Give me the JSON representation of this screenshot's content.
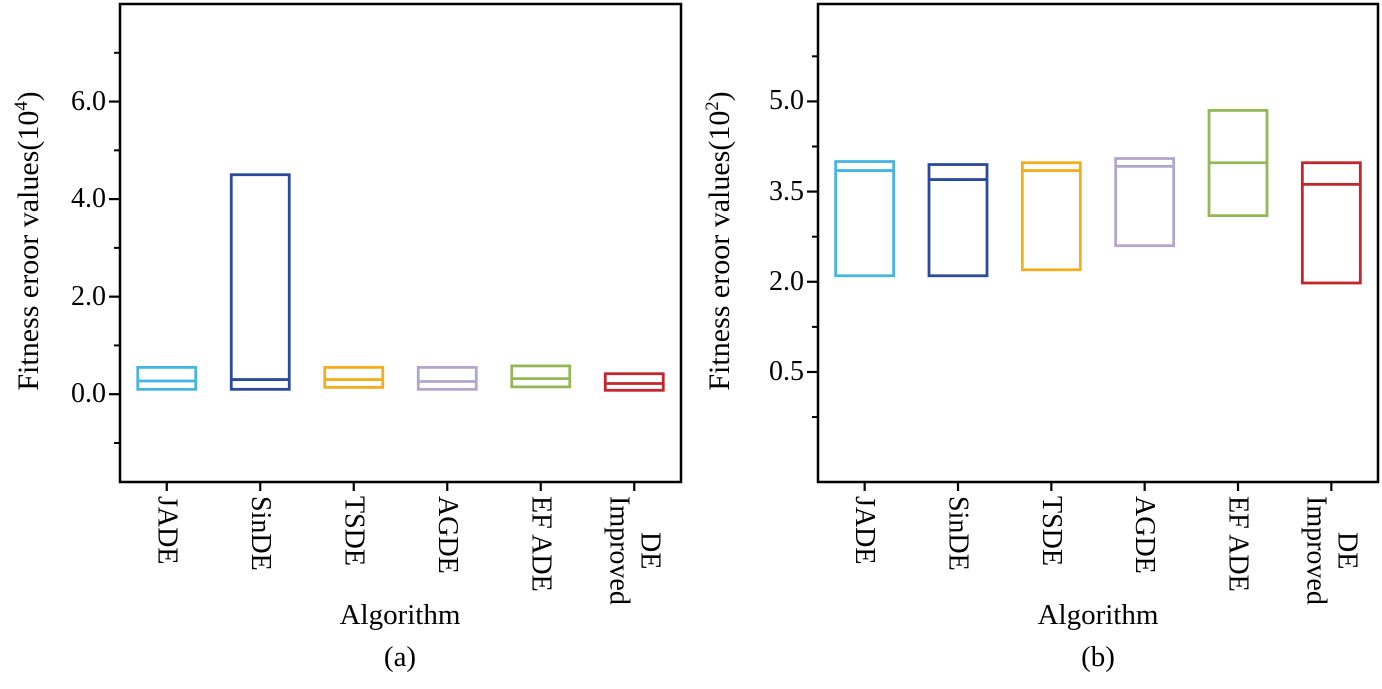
{
  "figure": {
    "background": "#ffffff",
    "frame_color": "#000000",
    "text_color": "#000000"
  },
  "chart_data": [
    {
      "type": "box",
      "caption": "(a)",
      "xlabel": "Algorithm",
      "ylabel": "Fitness eroor values(10^4)",
      "ylabel_prefix": "Fitness eroor values(10",
      "ylabel_exponent": "4",
      "ylabel_suffix": ")",
      "grid": false,
      "legend": false,
      "categories": [
        "JADE",
        "SinDE",
        "TSDE",
        "AGDE",
        "EF ADE",
        "Improved DE"
      ],
      "category_label_lines": [
        [
          "JADE"
        ],
        [
          "SinDE"
        ],
        [
          "TSDE"
        ],
        [
          "AGDE"
        ],
        [
          "EF ADE"
        ],
        [
          "Improved",
          "DE"
        ]
      ],
      "colors": [
        "#45B5E2",
        "#2C4A9D",
        "#F4AE1B",
        "#B3A6CC",
        "#94B857",
        "#C1272D"
      ],
      "ylim": [
        -1.8,
        8.0
      ],
      "yticks": [
        0.0,
        2.0,
        4.0,
        6.0
      ],
      "ytick_labels": [
        "0.0",
        "2.0",
        "4.0",
        "6.0"
      ],
      "minor_yticks": [
        -1.0,
        1.0,
        3.0,
        5.0,
        7.0
      ],
      "boxes": [
        {
          "category": "JADE",
          "low": 0.1,
          "median": 0.27,
          "high": 0.55
        },
        {
          "category": "SinDE",
          "low": 0.1,
          "median": 0.3,
          "high": 4.5
        },
        {
          "category": "TSDE",
          "low": 0.14,
          "median": 0.3,
          "high": 0.55
        },
        {
          "category": "AGDE",
          "low": 0.1,
          "median": 0.26,
          "high": 0.55
        },
        {
          "category": "EF ADE",
          "low": 0.15,
          "median": 0.32,
          "high": 0.58
        },
        {
          "category": "Improved DE",
          "low": 0.08,
          "median": 0.22,
          "high": 0.42
        }
      ]
    },
    {
      "type": "box",
      "caption": "(b)",
      "xlabel": "Algorithm",
      "ylabel": "Fitness eroor values(10^2)",
      "ylabel_prefix": "Fitness eroor values(10",
      "ylabel_exponent": "2",
      "ylabel_suffix": ")",
      "grid": false,
      "legend": false,
      "categories": [
        "JADE",
        "SinDE",
        "TSDE",
        "AGDE",
        "EF ADE",
        "Improved DE"
      ],
      "category_label_lines": [
        [
          "JADE"
        ],
        [
          "SinDE"
        ],
        [
          "TSDE"
        ],
        [
          "AGDE"
        ],
        [
          "EF ADE"
        ],
        [
          "Improved",
          "DE"
        ]
      ],
      "colors": [
        "#45B5E2",
        "#2C4A9D",
        "#F4AE1B",
        "#B3A6CC",
        "#94B857",
        "#C1272D"
      ],
      "ylim": [
        -1.33,
        6.62
      ],
      "yticks": [
        0.5,
        2.0,
        3.5,
        5.0
      ],
      "ytick_labels": [
        "0.5",
        "2.0",
        "3.5",
        "5.0"
      ],
      "minor_yticks": [
        -0.25,
        1.25,
        2.75,
        4.25,
        5.75
      ],
      "boxes": [
        {
          "category": "JADE",
          "low": 2.1,
          "median": 3.85,
          "high": 4.0
        },
        {
          "category": "SinDE",
          "low": 2.1,
          "median": 3.7,
          "high": 3.95
        },
        {
          "category": "TSDE",
          "low": 2.2,
          "median": 3.85,
          "high": 3.98
        },
        {
          "category": "AGDE",
          "low": 2.6,
          "median": 3.92,
          "high": 4.05
        },
        {
          "category": "EF ADE",
          "low": 3.1,
          "median": 3.98,
          "high": 4.85
        },
        {
          "category": "Improved DE",
          "low": 1.98,
          "median": 3.62,
          "high": 3.98
        }
      ]
    }
  ]
}
